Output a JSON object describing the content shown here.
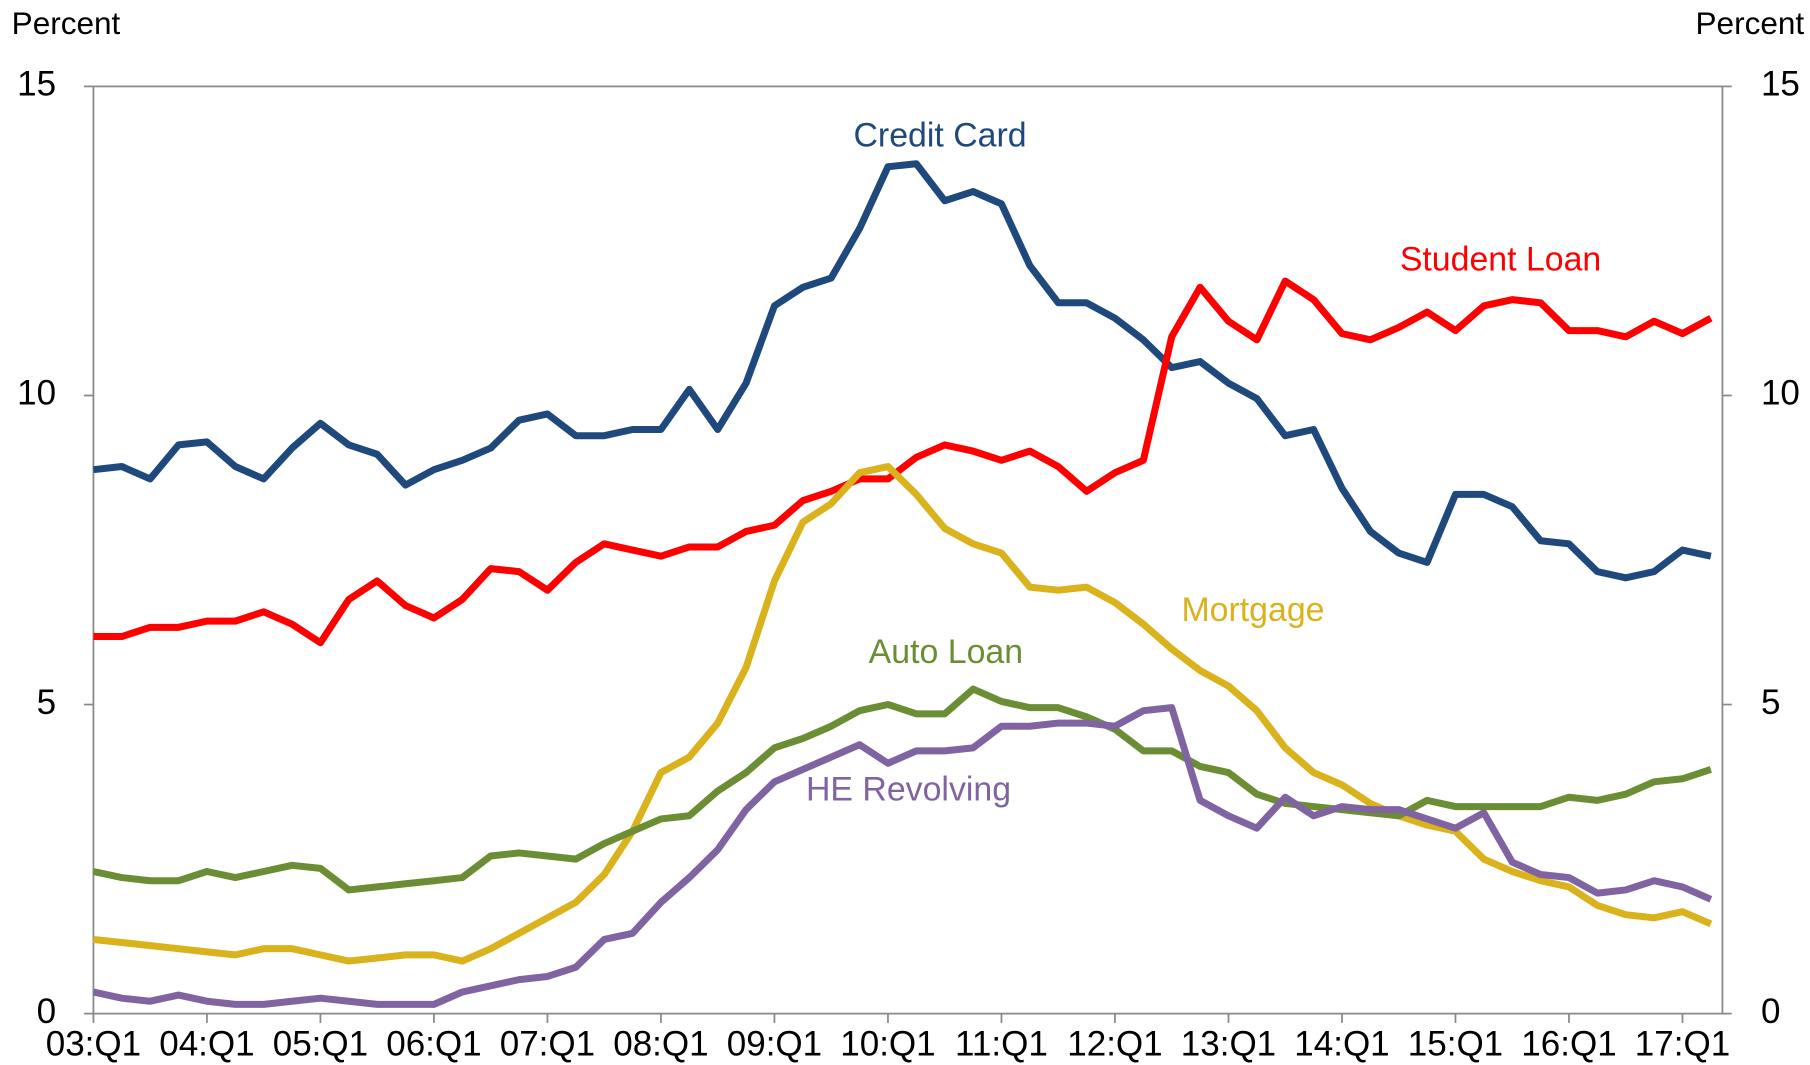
{
  "chart_data": {
    "type": "line",
    "y_label": "Percent",
    "y2_label": "Percent",
    "categories": [
      "03:Q1",
      null,
      null,
      null,
      "04:Q1",
      null,
      null,
      null,
      "05:Q1",
      null,
      null,
      null,
      "06:Q1",
      null,
      null,
      null,
      "07:Q1",
      null,
      null,
      null,
      "08:Q1",
      null,
      null,
      null,
      "09:Q1",
      null,
      null,
      null,
      "10:Q1",
      null,
      null,
      null,
      "11:Q1",
      null,
      null,
      null,
      "12:Q1",
      null,
      null,
      null,
      "13:Q1",
      null,
      null,
      null,
      "14:Q1",
      null,
      null,
      null,
      "15:Q1",
      null,
      null,
      null,
      "16:Q1",
      null,
      null,
      null,
      "17:Q1",
      null
    ],
    "ylim": [
      0,
      15
    ],
    "yticks": [
      0,
      5,
      10,
      15
    ],
    "y2lim": [
      0,
      15
    ],
    "y2ticks": [
      0,
      5,
      10,
      15
    ],
    "series": [
      {
        "name": "Credit Card",
        "color": "#1f497d",
        "values": [
          8.8,
          8.85,
          8.65,
          9.2,
          9.25,
          8.85,
          8.65,
          9.15,
          9.55,
          9.2,
          9.05,
          8.55,
          8.8,
          8.95,
          9.15,
          9.6,
          9.7,
          9.35,
          9.35,
          9.45,
          9.45,
          10.1,
          9.45,
          10.2,
          11.45,
          11.75,
          11.9,
          12.7,
          13.7,
          13.75,
          13.15,
          13.3,
          13.1,
          12.1,
          11.5,
          11.5,
          11.25,
          10.9,
          10.45,
          10.55,
          10.2,
          9.95,
          9.35,
          9.45,
          8.5,
          7.8,
          7.45,
          7.3,
          8.4,
          8.4,
          8.2,
          7.65,
          7.6,
          7.15,
          7.05,
          7.15,
          7.5,
          7.4
        ]
      },
      {
        "name": "Student Loan",
        "color": "#ff0000",
        "values": [
          6.1,
          6.1,
          6.25,
          6.25,
          6.35,
          6.35,
          6.5,
          6.3,
          6.0,
          6.7,
          7.0,
          6.6,
          6.4,
          6.7,
          7.2,
          7.15,
          6.85,
          7.3,
          7.6,
          7.5,
          7.4,
          7.55,
          7.55,
          7.8,
          7.9,
          8.3,
          8.45,
          8.65,
          8.65,
          9.0,
          9.2,
          9.1,
          8.95,
          9.1,
          8.85,
          8.45,
          8.75,
          8.95,
          10.95,
          11.75,
          11.2,
          10.9,
          11.85,
          11.55,
          11.0,
          10.9,
          11.1,
          11.35,
          11.05,
          11.45,
          11.55,
          11.5,
          11.05,
          11.05,
          10.95,
          11.2,
          11.0,
          11.25
        ]
      },
      {
        "name": "Mortgage",
        "color": "#d9b21c",
        "values": [
          1.2,
          1.15,
          1.1,
          1.05,
          1.0,
          0.95,
          1.05,
          1.05,
          0.95,
          0.85,
          0.9,
          0.95,
          0.95,
          0.85,
          1.05,
          1.3,
          1.55,
          1.8,
          2.25,
          2.95,
          3.9,
          4.15,
          4.7,
          5.6,
          7.0,
          7.95,
          8.25,
          8.75,
          8.85,
          8.4,
          7.85,
          7.6,
          7.45,
          6.9,
          6.85,
          6.9,
          6.65,
          6.3,
          5.9,
          5.55,
          5.3,
          4.9,
          4.3,
          3.9,
          3.7,
          3.4,
          3.2,
          3.05,
          2.95,
          2.5,
          2.3,
          2.15,
          2.05,
          1.75,
          1.6,
          1.55,
          1.65,
          1.45
        ]
      },
      {
        "name": "Auto Loan",
        "color": "#6b8e34",
        "values": [
          2.3,
          2.2,
          2.15,
          2.15,
          2.3,
          2.2,
          2.3,
          2.4,
          2.35,
          2.0,
          2.05,
          2.1,
          2.15,
          2.2,
          2.55,
          2.6,
          2.55,
          2.5,
          2.75,
          2.95,
          3.15,
          3.2,
          3.6,
          3.9,
          4.3,
          4.45,
          4.65,
          4.9,
          5.0,
          4.85,
          4.85,
          5.25,
          5.05,
          4.95,
          4.95,
          4.8,
          4.6,
          4.25,
          4.25,
          4.0,
          3.9,
          3.55,
          3.4,
          3.35,
          3.3,
          3.25,
          3.2,
          3.45,
          3.35,
          3.35,
          3.35,
          3.35,
          3.5,
          3.45,
          3.55,
          3.75,
          3.8,
          3.95
        ]
      },
      {
        "name": "HE Revolving",
        "color": "#8064a2",
        "values": [
          0.35,
          0.25,
          0.2,
          0.3,
          0.2,
          0.15,
          0.15,
          0.2,
          0.25,
          0.2,
          0.15,
          0.15,
          0.15,
          0.35,
          0.45,
          0.55,
          0.6,
          0.75,
          1.2,
          1.3,
          1.8,
          2.2,
          2.65,
          3.3,
          3.75,
          3.95,
          4.15,
          4.35,
          4.05,
          4.25,
          4.25,
          4.3,
          4.65,
          4.65,
          4.7,
          4.7,
          4.65,
          4.9,
          4.95,
          3.45,
          3.2,
          3.0,
          3.5,
          3.2,
          3.35,
          3.3,
          3.3,
          3.15,
          3.0,
          3.25,
          2.45,
          2.25,
          2.2,
          1.95,
          2.0,
          2.15,
          2.05,
          1.85
        ]
      }
    ]
  }
}
